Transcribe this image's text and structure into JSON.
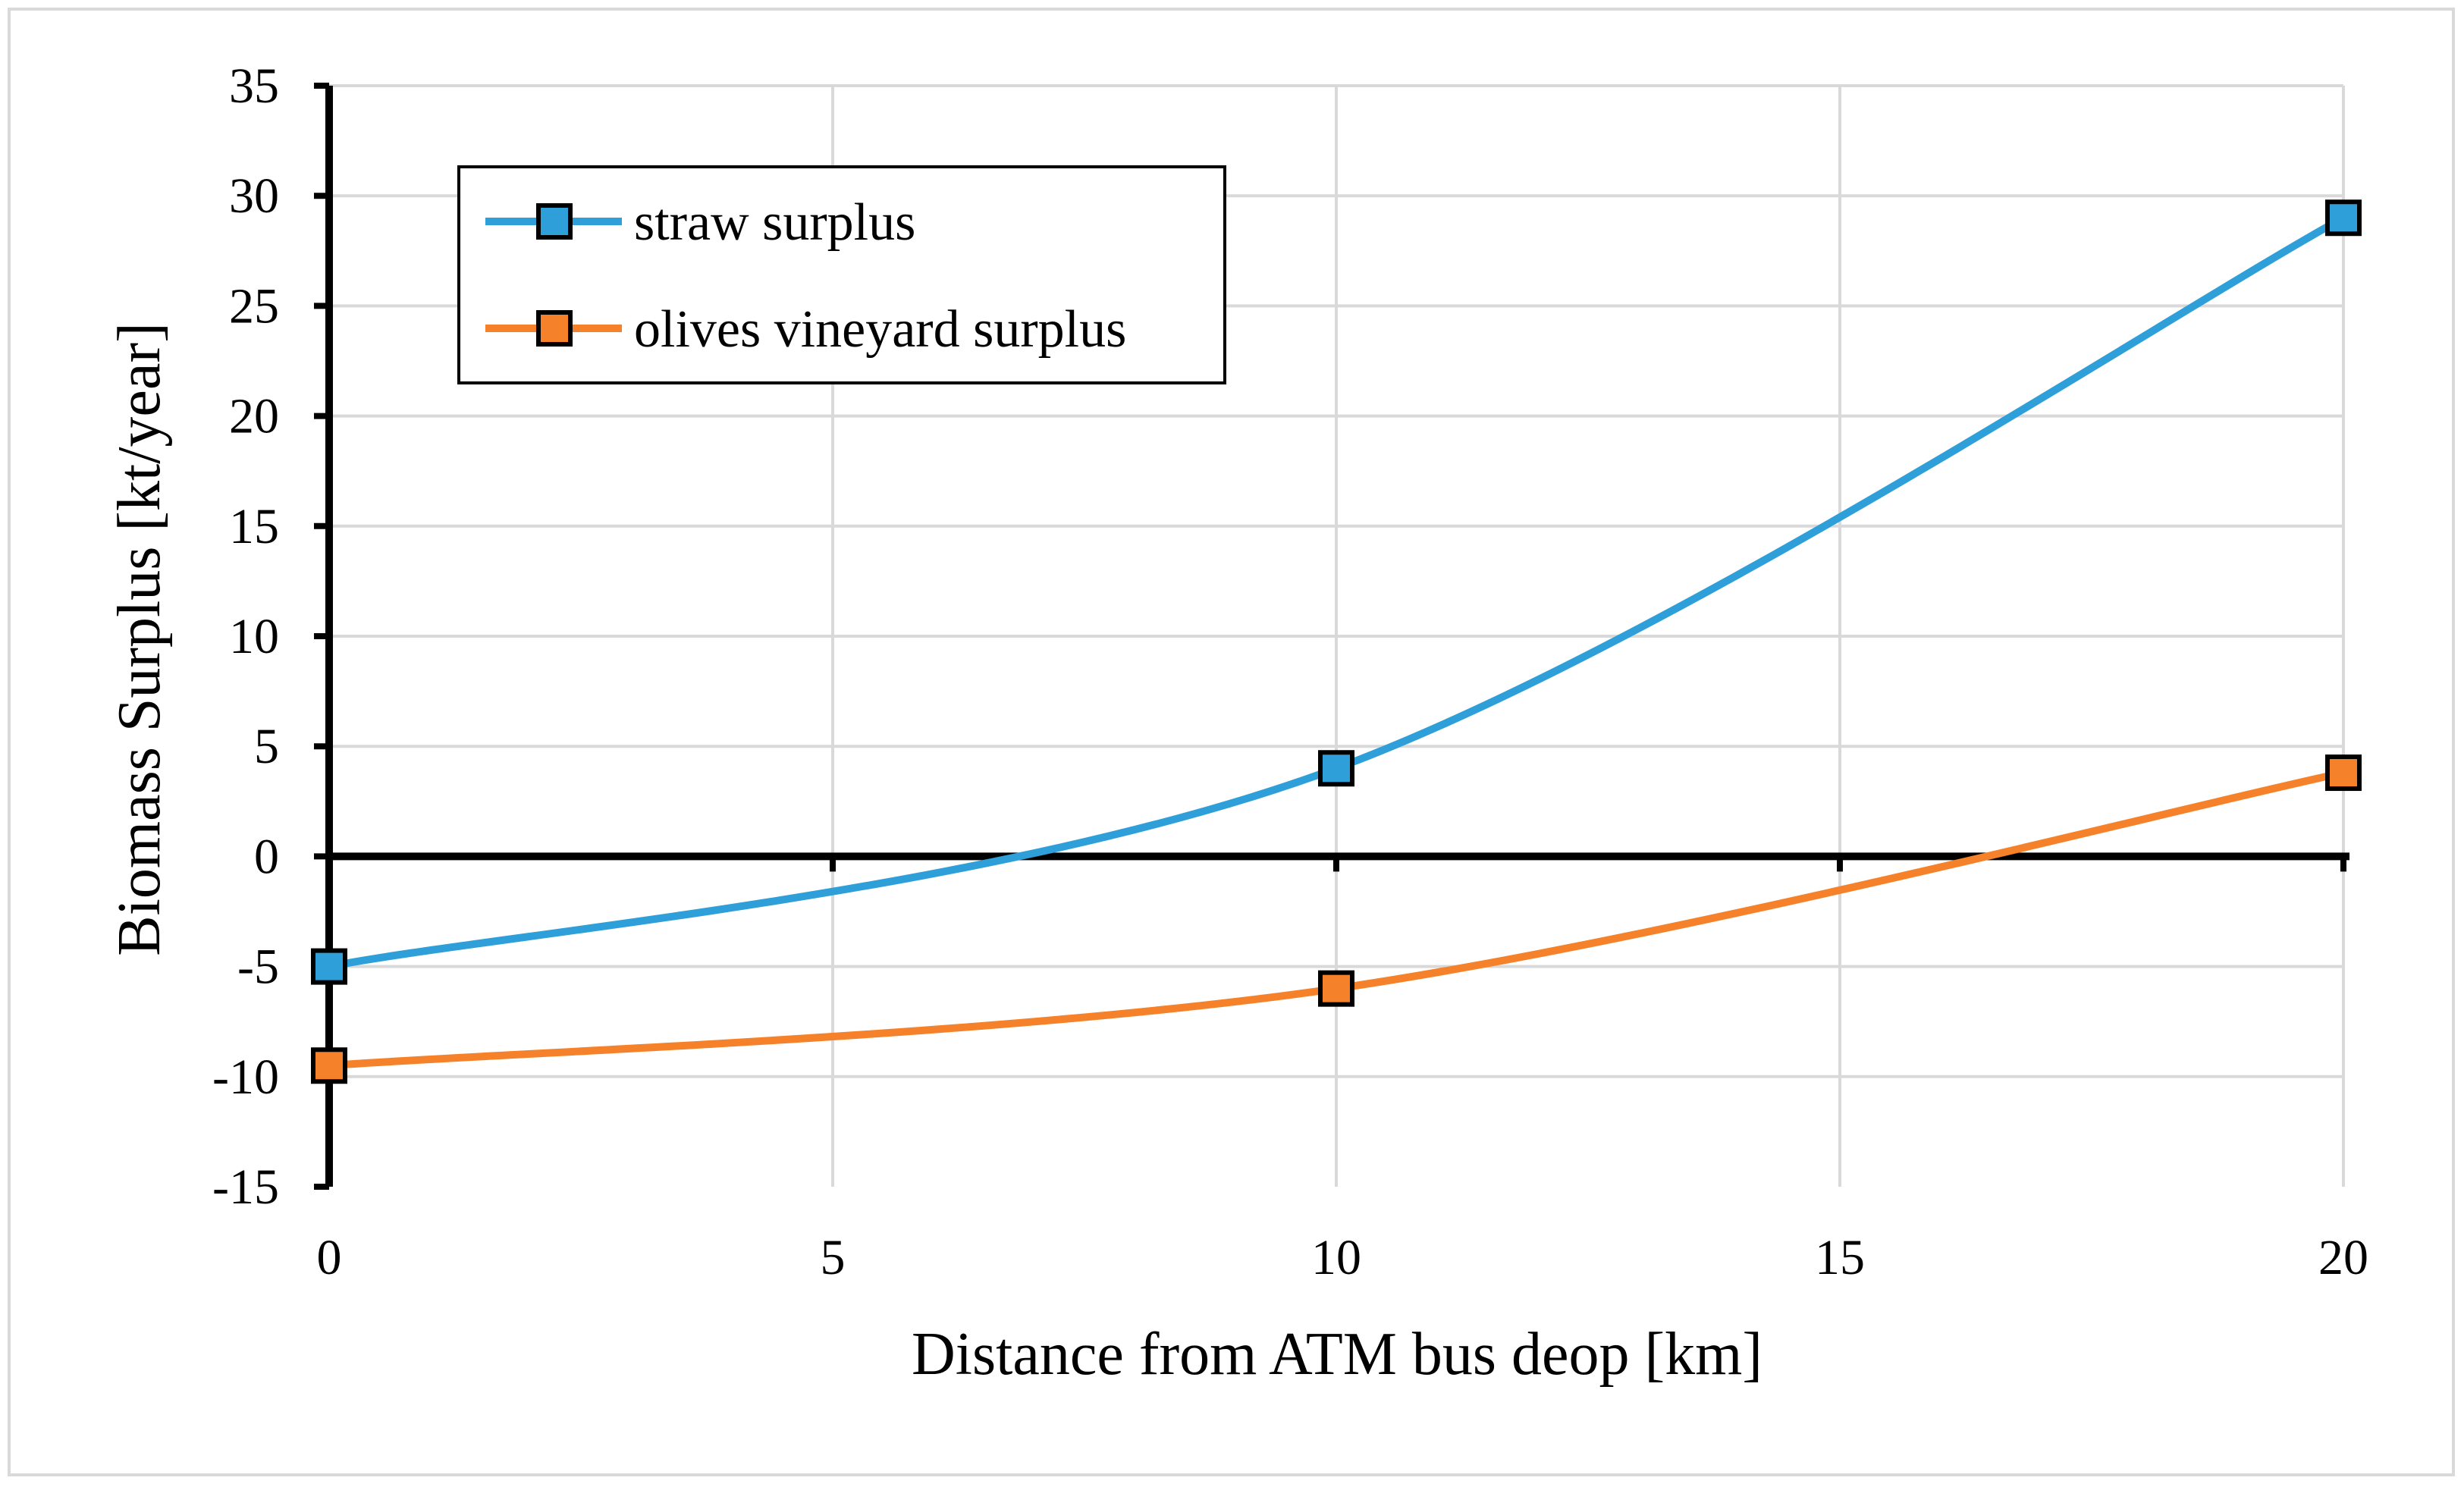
{
  "chart_data": {
    "type": "line",
    "title": "",
    "xlabel": "Distance from ATM bus deop [km]",
    "ylabel": "Biomass Surplus [kt/year]",
    "xlim": [
      0,
      20
    ],
    "ylim": [
      -15,
      35
    ],
    "xticks": [
      0,
      5,
      10,
      15,
      20
    ],
    "yticks": [
      -15,
      -10,
      -5,
      0,
      5,
      10,
      15,
      20,
      25,
      30,
      35
    ],
    "xtick_labels": [
      "0",
      "5",
      "10",
      "15",
      "20"
    ],
    "ytick_labels": [
      "-15",
      "-10",
      "-5",
      "0",
      "5",
      "10",
      "15",
      "20",
      "25",
      "30",
      "35"
    ],
    "grid": true,
    "legend_position": "top-left",
    "smooth": true,
    "series": [
      {
        "name": "straw surplus",
        "color": "#2e9fd8",
        "x": [
          0,
          10,
          20
        ],
        "values": [
          -5,
          4,
          29
        ]
      },
      {
        "name": "olives vineyard surplus",
        "color": "#f5822a",
        "x": [
          0,
          10,
          20
        ],
        "values": [
          -9.5,
          -6,
          3.8
        ]
      }
    ]
  },
  "colors": {
    "grid": "#d9d9d9",
    "axis": "#000000",
    "marker_border": "#000000"
  }
}
